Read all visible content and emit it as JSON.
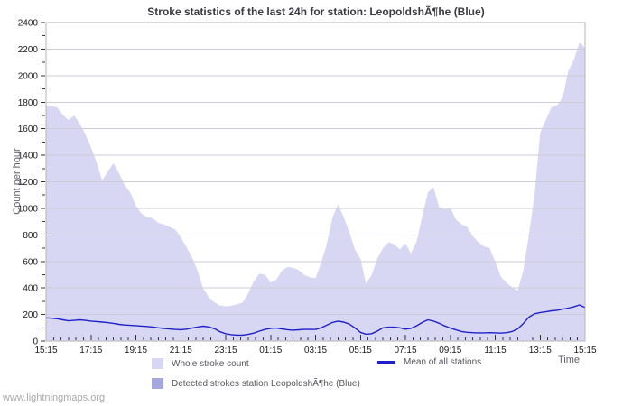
{
  "title": "Stroke statistics of the last 24h for station: LeopoldshÃ¶he (Blue)",
  "watermark": "www.lightningmaps.org",
  "axes": {
    "y_label": "Count per hour",
    "x_label": "Time"
  },
  "legend": {
    "items": [
      {
        "label": "Whole stroke count"
      },
      {
        "label": "Mean of all stations"
      },
      {
        "label": "Detected strokes station LeopoldshÃ¶he (Blue)"
      }
    ]
  },
  "colors": {
    "whole_area": "#d7d7f3",
    "detected_area": "#a6a6de",
    "mean_line": "#2020c8",
    "grid": "#ccccd4",
    "border": "#b3b3b3",
    "tick": "#333333",
    "axis_text": "#1c1c1c",
    "title_text": "#3a3a40",
    "muted_text": "#62626a",
    "watermark_text": "#a8a8a8"
  },
  "chart_data": {
    "type": "area",
    "title": "Stroke statistics of the last 24h for station: LeopoldshÃ¶he (Blue)",
    "xlabel": "Time",
    "ylabel": "Count per hour",
    "x_tick_labels": [
      "15:15",
      "17:15",
      "19:15",
      "21:15",
      "23:15",
      "01:15",
      "03:15",
      "05:15",
      "07:15",
      "09:15",
      "11:15",
      "13:15",
      "15:15"
    ],
    "x_span_hours": 24,
    "x_tick_step_hours": 2,
    "x_minor_tick_minutes": 20,
    "ylim": [
      0,
      2400
    ],
    "y_tick_step": 200,
    "y_minor_tick_step": 100,
    "sample_interval_minutes": 15,
    "grid": "horizontal-only",
    "legend_position": "bottom",
    "series": [
      {
        "name": "Whole stroke count",
        "key": "whole-stroke-count",
        "type": "area",
        "color": "#d7d7f3",
        "values": [
          1770,
          1772,
          1760,
          1705,
          1665,
          1700,
          1640,
          1560,
          1460,
          1345,
          1210,
          1280,
          1340,
          1265,
          1175,
          1120,
          1020,
          960,
          935,
          925,
          890,
          880,
          860,
          840,
          780,
          710,
          630,
          530,
          395,
          330,
          290,
          268,
          262,
          266,
          276,
          290,
          360,
          450,
          508,
          500,
          440,
          462,
          530,
          558,
          552,
          535,
          498,
          480,
          474,
          590,
          730,
          930,
          1030,
          935,
          825,
          690,
          620,
          430,
          500,
          620,
          700,
          745,
          730,
          690,
          735,
          660,
          750,
          940,
          1120,
          1160,
          1010,
          990,
          1005,
          915,
          880,
          860,
          790,
          746,
          712,
          700,
          600,
          485,
          440,
          405,
          380,
          530,
          800,
          1100,
          1570,
          1665,
          1760,
          1775,
          1830,
          2030,
          2120,
          2250,
          2210
        ]
      },
      {
        "name": "Detected strokes station LeopoldshÃ¶he (Blue)",
        "key": "detected-strokes",
        "type": "area",
        "color": "#a6a6de",
        "values": [
          0,
          0,
          0,
          0,
          0,
          0,
          0,
          0,
          0,
          0,
          0,
          0,
          0,
          0,
          0,
          0,
          0,
          0,
          0,
          0,
          0,
          0,
          0,
          0,
          0,
          0,
          0,
          0,
          0,
          0,
          0,
          0,
          0,
          0,
          0,
          0,
          0,
          0,
          0,
          0,
          0,
          0,
          0,
          0,
          0,
          0,
          0,
          0,
          0,
          0,
          0,
          0,
          0,
          0,
          0,
          0,
          0,
          0,
          0,
          0,
          0,
          0,
          0,
          0,
          0,
          0,
          0,
          0,
          0,
          0,
          0,
          0,
          0,
          0,
          0,
          0,
          0,
          0,
          0,
          0,
          0,
          0,
          0,
          0,
          0,
          0,
          0,
          0,
          0,
          0,
          0,
          0,
          0,
          0,
          0,
          0,
          0
        ]
      },
      {
        "name": "Mean of all stations",
        "key": "mean-of-all-stations",
        "type": "line",
        "color": "#2020c8",
        "values": [
          175,
          172,
          168,
          160,
          152,
          156,
          160,
          156,
          150,
          147,
          143,
          139,
          133,
          126,
          121,
          118,
          116,
          113,
          110,
          106,
          100,
          95,
          91,
          88,
          86,
          90,
          98,
          106,
          112,
          107,
          93,
          70,
          55,
          48,
          45,
          45,
          50,
          60,
          75,
          88,
          96,
          98,
          92,
          86,
          82,
          85,
          88,
          88,
          88,
          100,
          120,
          140,
          150,
          143,
          128,
          100,
          65,
          52,
          56,
          75,
          100,
          105,
          105,
          100,
          90,
          96,
          115,
          140,
          160,
          150,
          134,
          114,
          98,
          84,
          72,
          66,
          63,
          62,
          62,
          63,
          62,
          60,
          63,
          72,
          92,
          132,
          180,
          205,
          215,
          220,
          228,
          232,
          240,
          248,
          258,
          272,
          252
        ]
      }
    ]
  }
}
